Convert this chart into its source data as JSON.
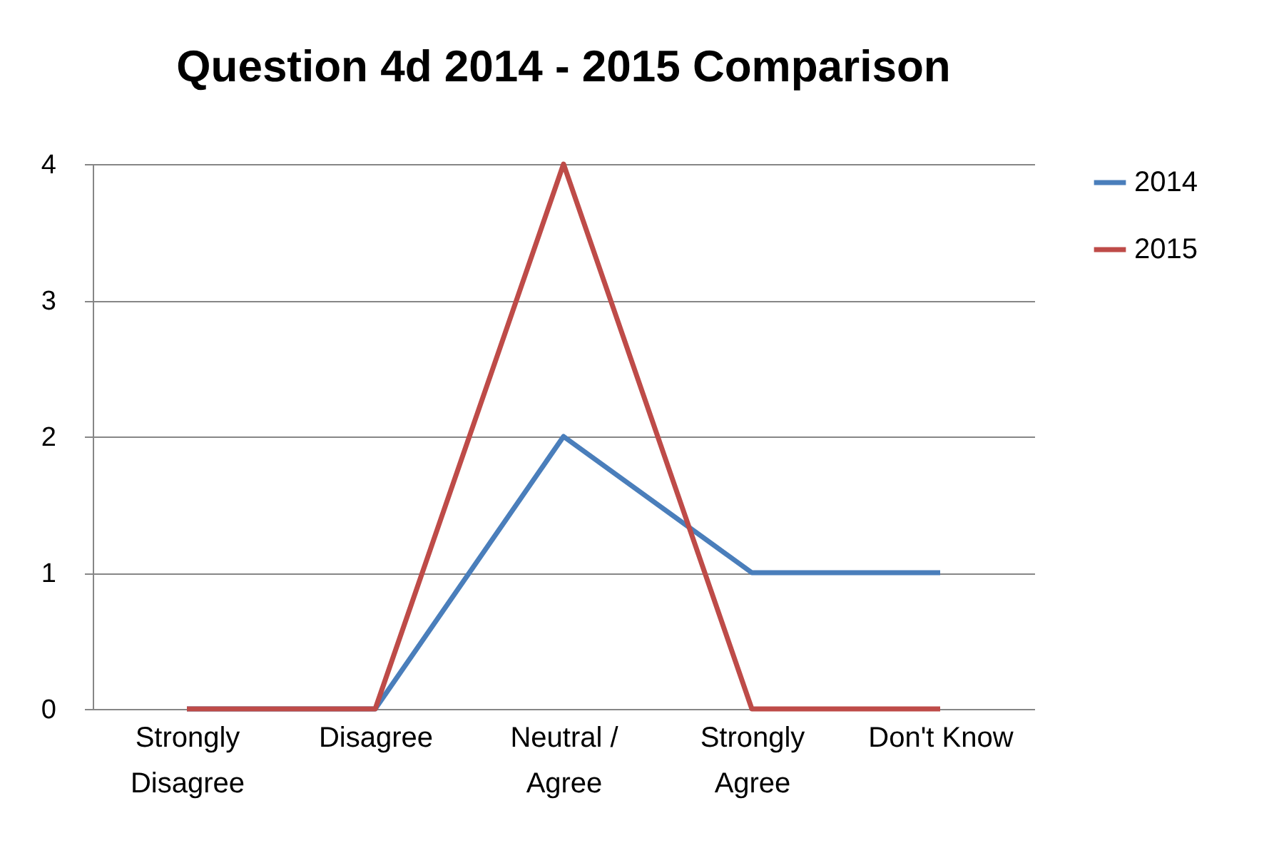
{
  "chart_data": {
    "type": "line",
    "title": "Question 4d 2014 - 2015 Comparison",
    "categories": [
      "Strongly Disagree",
      "Disagree",
      "Neutral / Agree",
      "Strongly Agree",
      "Don't Know"
    ],
    "series": [
      {
        "name": "2014",
        "color": "#4a7ebb",
        "values": [
          0,
          0,
          2,
          1,
          1
        ]
      },
      {
        "name": "2015",
        "color": "#be4b48",
        "values": [
          0,
          0,
          4,
          0,
          0
        ]
      }
    ],
    "ylim": [
      0,
      4
    ],
    "yticks": [
      0,
      1,
      2,
      3,
      4
    ],
    "grid": "y",
    "legend": "right",
    "marker": "none",
    "line_style": "solid"
  }
}
